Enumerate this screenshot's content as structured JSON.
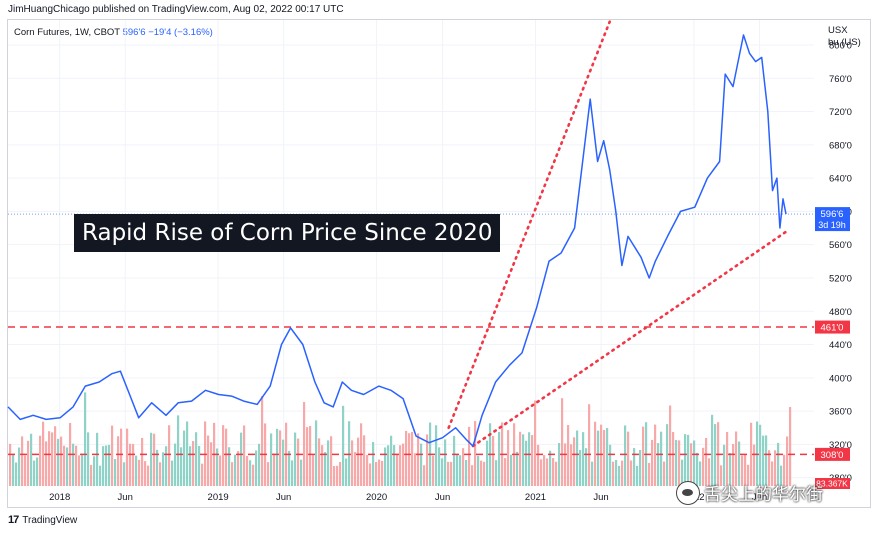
{
  "header": {
    "publisher": "JimHuangChicago published on TradingView.com, Aug 02, 2022 00:17 UTC"
  },
  "legend": {
    "symbol": "Corn Futures, 1W, CBOT",
    "last_price": "596'6",
    "change": "−19'4 (−3.16%)"
  },
  "axis_header": {
    "currency": "USX",
    "unit": "bu (US)"
  },
  "callout": {
    "text": "Rapid Rise of Corn Price Since 2020"
  },
  "footer": {
    "brand": "TradingView",
    "logo_glyph": "17"
  },
  "watermark": {
    "text": "舌尖上的华尔街"
  },
  "colors": {
    "price_line": "#2962ff",
    "volume_up": "#8fd3c8",
    "volume_down": "#f7a8a8",
    "level_line": "#f23645",
    "trend_line": "#f23645",
    "grid": "#f0f3fa"
  },
  "chart_data": {
    "type": "line",
    "x_axis": {
      "type": "date",
      "range": [
        "2017-09-04",
        "2022-08-01"
      ],
      "tick_labels": [
        "2018",
        "Jun",
        "2019",
        "Jun",
        "2020",
        "Jun",
        "2021",
        "Jun",
        "2022",
        "Jun"
      ]
    },
    "y_axis": {
      "range": [
        270,
        830
      ],
      "tick_labels": [
        "280'0",
        "320'0",
        "360'0",
        "400'0",
        "440'0",
        "480'0",
        "520'0",
        "560'0",
        "600'0",
        "640'0",
        "680'0",
        "720'0",
        "760'0",
        "800'0"
      ]
    },
    "grid": true,
    "price_series": [
      [
        "2017-09-04",
        365
      ],
      [
        "2017-10-02",
        350
      ],
      [
        "2017-11-01",
        355
      ],
      [
        "2017-12-01",
        350
      ],
      [
        "2018-01-02",
        352
      ],
      [
        "2018-02-01",
        365
      ],
      [
        "2018-03-01",
        390
      ],
      [
        "2018-04-02",
        395
      ],
      [
        "2018-05-01",
        405
      ],
      [
        "2018-05-21",
        408
      ],
      [
        "2018-06-11",
        380
      ],
      [
        "2018-07-02",
        352
      ],
      [
        "2018-08-01",
        370
      ],
      [
        "2018-09-03",
        355
      ],
      [
        "2018-10-01",
        370
      ],
      [
        "2018-11-01",
        372
      ],
      [
        "2018-12-03",
        385
      ],
      [
        "2019-01-02",
        380
      ],
      [
        "2019-02-01",
        378
      ],
      [
        "2019-03-01",
        372
      ],
      [
        "2019-04-01",
        368
      ],
      [
        "2019-05-01",
        390
      ],
      [
        "2019-05-27",
        440
      ],
      [
        "2019-06-17",
        460
      ],
      [
        "2019-07-15",
        440
      ],
      [
        "2019-08-12",
        395
      ],
      [
        "2019-09-02",
        370
      ],
      [
        "2019-09-23",
        365
      ],
      [
        "2019-10-14",
        395
      ],
      [
        "2019-11-04",
        385
      ],
      [
        "2019-12-02",
        380
      ],
      [
        "2020-01-06",
        390
      ],
      [
        "2020-02-03",
        385
      ],
      [
        "2020-03-02",
        375
      ],
      [
        "2020-04-01",
        330
      ],
      [
        "2020-05-01",
        322
      ],
      [
        "2020-06-01",
        328
      ],
      [
        "2020-07-01",
        340
      ],
      [
        "2020-07-27",
        325
      ],
      [
        "2020-08-10",
        318
      ],
      [
        "2020-08-31",
        355
      ],
      [
        "2020-10-01",
        395
      ],
      [
        "2020-11-02",
        415
      ],
      [
        "2020-12-01",
        430
      ],
      [
        "2021-01-04",
        485
      ],
      [
        "2021-02-01",
        540
      ],
      [
        "2021-03-01",
        550
      ],
      [
        "2021-04-01",
        580
      ],
      [
        "2021-05-07",
        735
      ],
      [
        "2021-05-24",
        660
      ],
      [
        "2021-06-07",
        685
      ],
      [
        "2021-06-21",
        650
      ],
      [
        "2021-07-05",
        600
      ],
      [
        "2021-07-19",
        535
      ],
      [
        "2021-08-02",
        570
      ],
      [
        "2021-09-01",
        545
      ],
      [
        "2021-09-20",
        520
      ],
      [
        "2021-10-04",
        540
      ],
      [
        "2021-11-01",
        570
      ],
      [
        "2021-12-01",
        600
      ],
      [
        "2022-01-03",
        605
      ],
      [
        "2022-02-01",
        640
      ],
      [
        "2022-03-01",
        660
      ],
      [
        "2022-03-14",
        765
      ],
      [
        "2022-04-01",
        750
      ],
      [
        "2022-04-25",
        812
      ],
      [
        "2022-05-09",
        790
      ],
      [
        "2022-05-23",
        780
      ],
      [
        "2022-06-06",
        785
      ],
      [
        "2022-06-20",
        720
      ],
      [
        "2022-07-01",
        625
      ],
      [
        "2022-07-11",
        640
      ],
      [
        "2022-07-18",
        580
      ],
      [
        "2022-07-25",
        615
      ],
      [
        "2022-08-01",
        596.75
      ]
    ],
    "levels": [
      {
        "value": 461,
        "label": "461'0"
      },
      {
        "value": 308,
        "label": "308'0"
      }
    ],
    "current_price_label": {
      "value": 596.75,
      "label": "596'6",
      "countdown": "3d 19h"
    },
    "volume_label": "83.367K",
    "trend_lines": [
      {
        "style": "dotted",
        "from": [
          "2020-06-15",
          340
        ],
        "to": [
          "2021-06-21",
          828
        ]
      },
      {
        "style": "dotted",
        "from": [
          "2020-08-10",
          318
        ],
        "to": [
          "2022-08-08",
          578
        ]
      }
    ]
  }
}
